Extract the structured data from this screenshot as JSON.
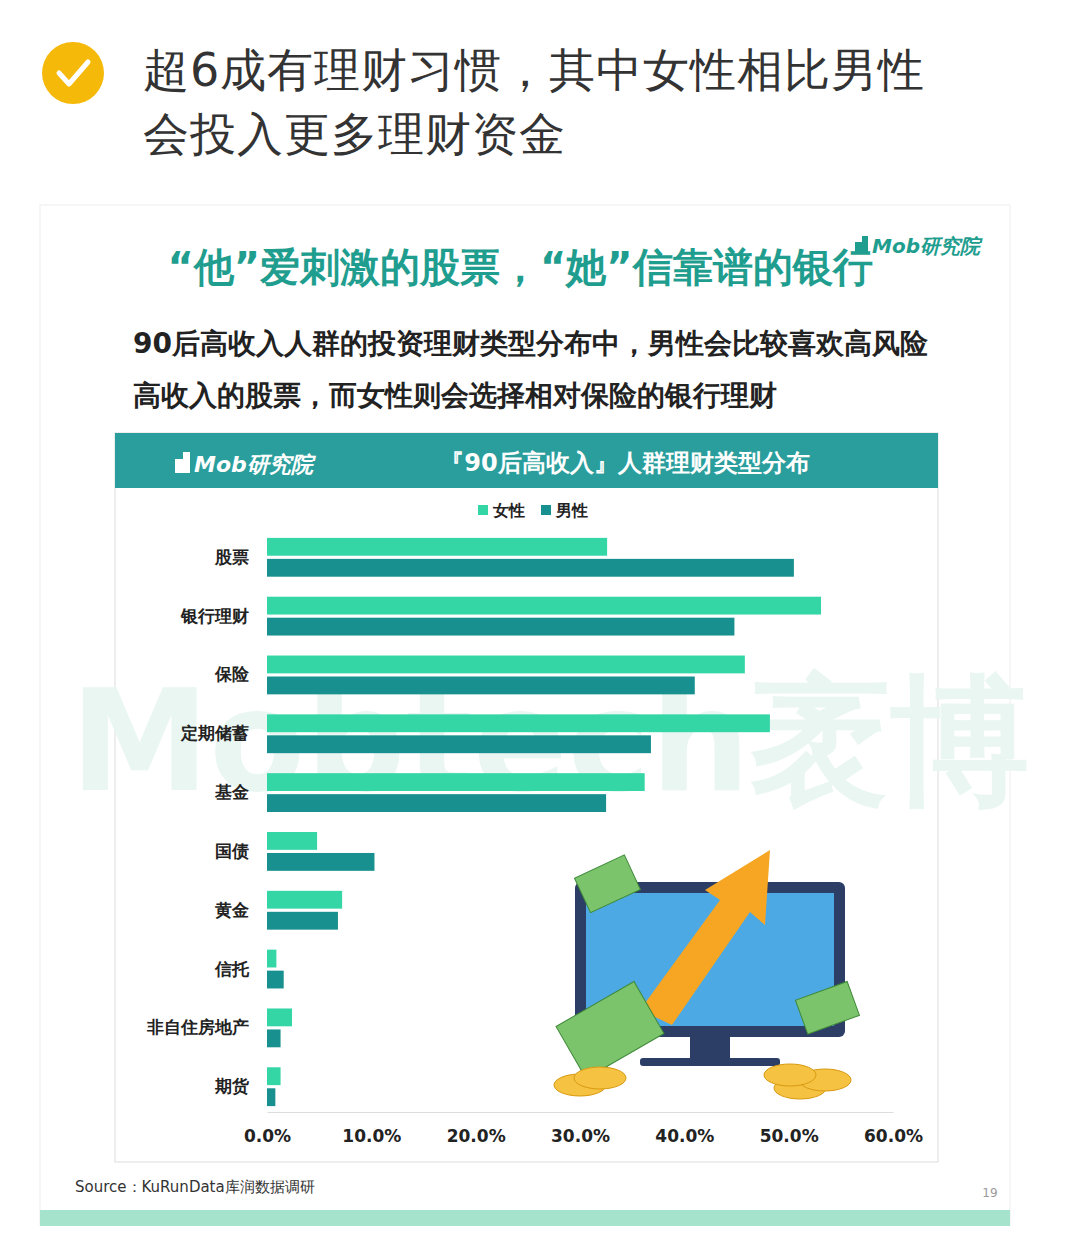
{
  "page_header": "超6成有理财习惯，其中女性相比男性会投入更多理财资金",
  "brand": "Mob研究院",
  "card_title": "“他”爱刺激的股票，“她”信靠谱的银行",
  "card_subtitle": "90后高收入人群的投资理财类型分布中，男性会比较喜欢高风险高收入的股票，而女性则会选择相对保险的银行理财",
  "watermark": "Mobtech袤博",
  "source": "Source：KuRunData库润数据调研",
  "page_number": "19",
  "chart_data": {
    "type": "bar",
    "orientation": "horizontal",
    "title": "『90后高收入』人群理财类型分布",
    "categories": [
      "股票",
      "银行理财",
      "保险",
      "定期储蓄",
      "基金",
      "国债",
      "黄金",
      "信托",
      "非自住房地产",
      "期货"
    ],
    "series": [
      {
        "name": "女性",
        "color": "#34d6a6",
        "values": [
          32.6,
          53.1,
          45.8,
          48.2,
          36.2,
          4.8,
          7.2,
          0.9,
          2.4,
          1.3
        ]
      },
      {
        "name": "男性",
        "color": "#17908f",
        "values": [
          50.5,
          44.8,
          41.0,
          36.8,
          32.5,
          10.3,
          6.8,
          1.6,
          1.3,
          0.8
        ]
      }
    ],
    "xlim": [
      0,
      60
    ],
    "xticks": [
      {
        "value": 0,
        "label": "0.0%"
      },
      {
        "value": 10,
        "label": "10.0%"
      },
      {
        "value": 20,
        "label": "20.0%"
      },
      {
        "value": 30,
        "label": "30.0%"
      },
      {
        "value": 40,
        "label": "40.0%"
      },
      {
        "value": 50,
        "label": "50.0%"
      },
      {
        "value": 60,
        "label": "60.0%"
      }
    ],
    "legend": "top",
    "grid": false
  }
}
